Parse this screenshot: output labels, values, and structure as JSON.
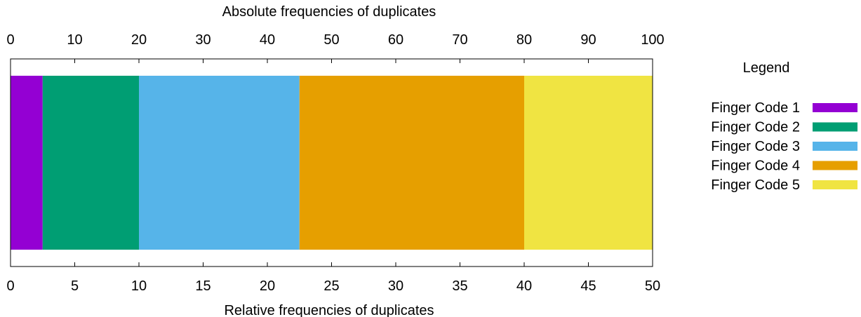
{
  "chart_data": {
    "type": "bar",
    "orientation": "horizontal-stacked",
    "title": "",
    "xlabel_top": "Absolute frequencies of duplicates",
    "xlabel_bottom": "Relative frequencies of duplicates",
    "top_axis": {
      "range": [
        0,
        100
      ],
      "ticks": [
        0,
        10,
        20,
        30,
        40,
        50,
        60,
        70,
        80,
        90,
        100
      ]
    },
    "bottom_axis": {
      "range": [
        0,
        50
      ],
      "ticks": [
        0,
        5,
        10,
        15,
        20,
        25,
        30,
        35,
        40,
        45,
        50
      ]
    },
    "grid": false,
    "legend": {
      "title": "Legend",
      "placement": "right"
    },
    "series": [
      {
        "name": "Finger Code 1",
        "value": 5,
        "color": "#9400d3"
      },
      {
        "name": "Finger Code 2",
        "value": 15,
        "color": "#009e73"
      },
      {
        "name": "Finger Code 3",
        "value": 25,
        "color": "#56b4e9"
      },
      {
        "name": "Finger Code 4",
        "value": 35,
        "color": "#e69f00"
      },
      {
        "name": "Finger Code 5",
        "value": 20,
        "color": "#f0e442"
      }
    ]
  }
}
